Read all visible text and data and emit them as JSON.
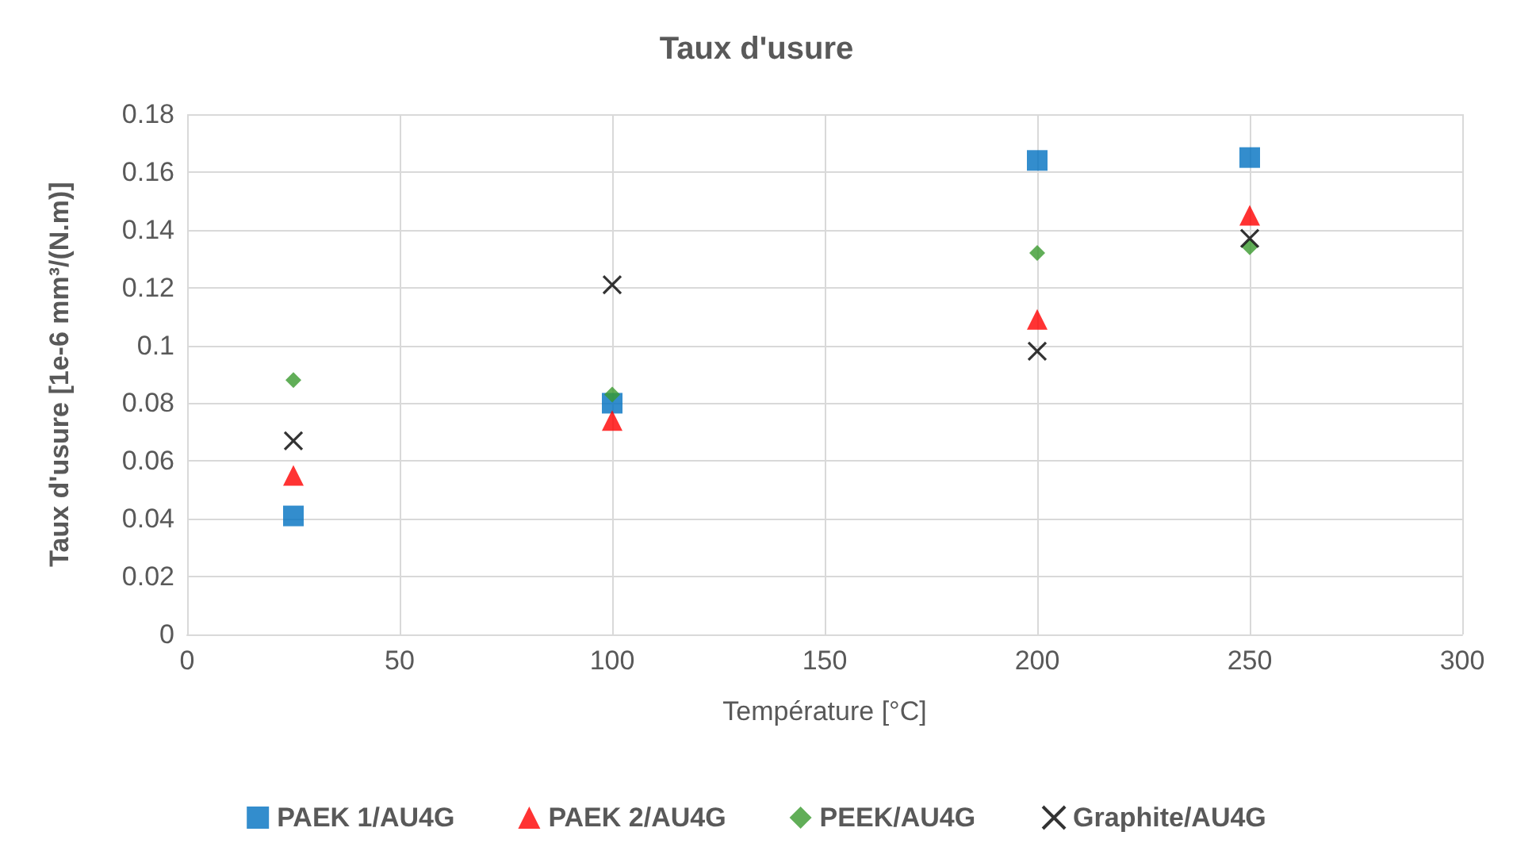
{
  "chart_data": {
    "type": "scatter",
    "title": "Taux d'usure",
    "xlabel": "Température [°C]",
    "ylabel": "Taux d'usure [1e-6 mm³/(N.m)]",
    "x": [
      25,
      100,
      200,
      250
    ],
    "series": [
      {
        "name": "PAEK 1/AU4G",
        "color": "#0070c0",
        "marker": "square",
        "values": [
          0.041,
          0.08,
          0.164,
          0.165
        ]
      },
      {
        "name": "PAEK 2/AU4G",
        "color": "#ff0000",
        "marker": "triangle",
        "values": [
          0.055,
          0.074,
          0.109,
          0.145
        ]
      },
      {
        "name": "PEEK/AU4G",
        "color": "#3a9a2e",
        "marker": "diamond",
        "values": [
          0.088,
          0.083,
          0.132,
          0.134
        ]
      },
      {
        "name": "Graphite/AU4G",
        "color": "#000000",
        "marker": "cross",
        "values": [
          0.067,
          0.121,
          0.098,
          0.137
        ]
      }
    ],
    "xlim": [
      0,
      300
    ],
    "xticks": [
      0,
      50,
      100,
      150,
      200,
      250,
      300
    ],
    "ylim": [
      0,
      0.18
    ],
    "yticks": [
      0,
      0.02,
      0.04,
      0.06,
      0.08,
      0.1,
      0.12,
      0.14,
      0.16,
      0.18
    ],
    "grid": true,
    "legend": "bottom"
  }
}
